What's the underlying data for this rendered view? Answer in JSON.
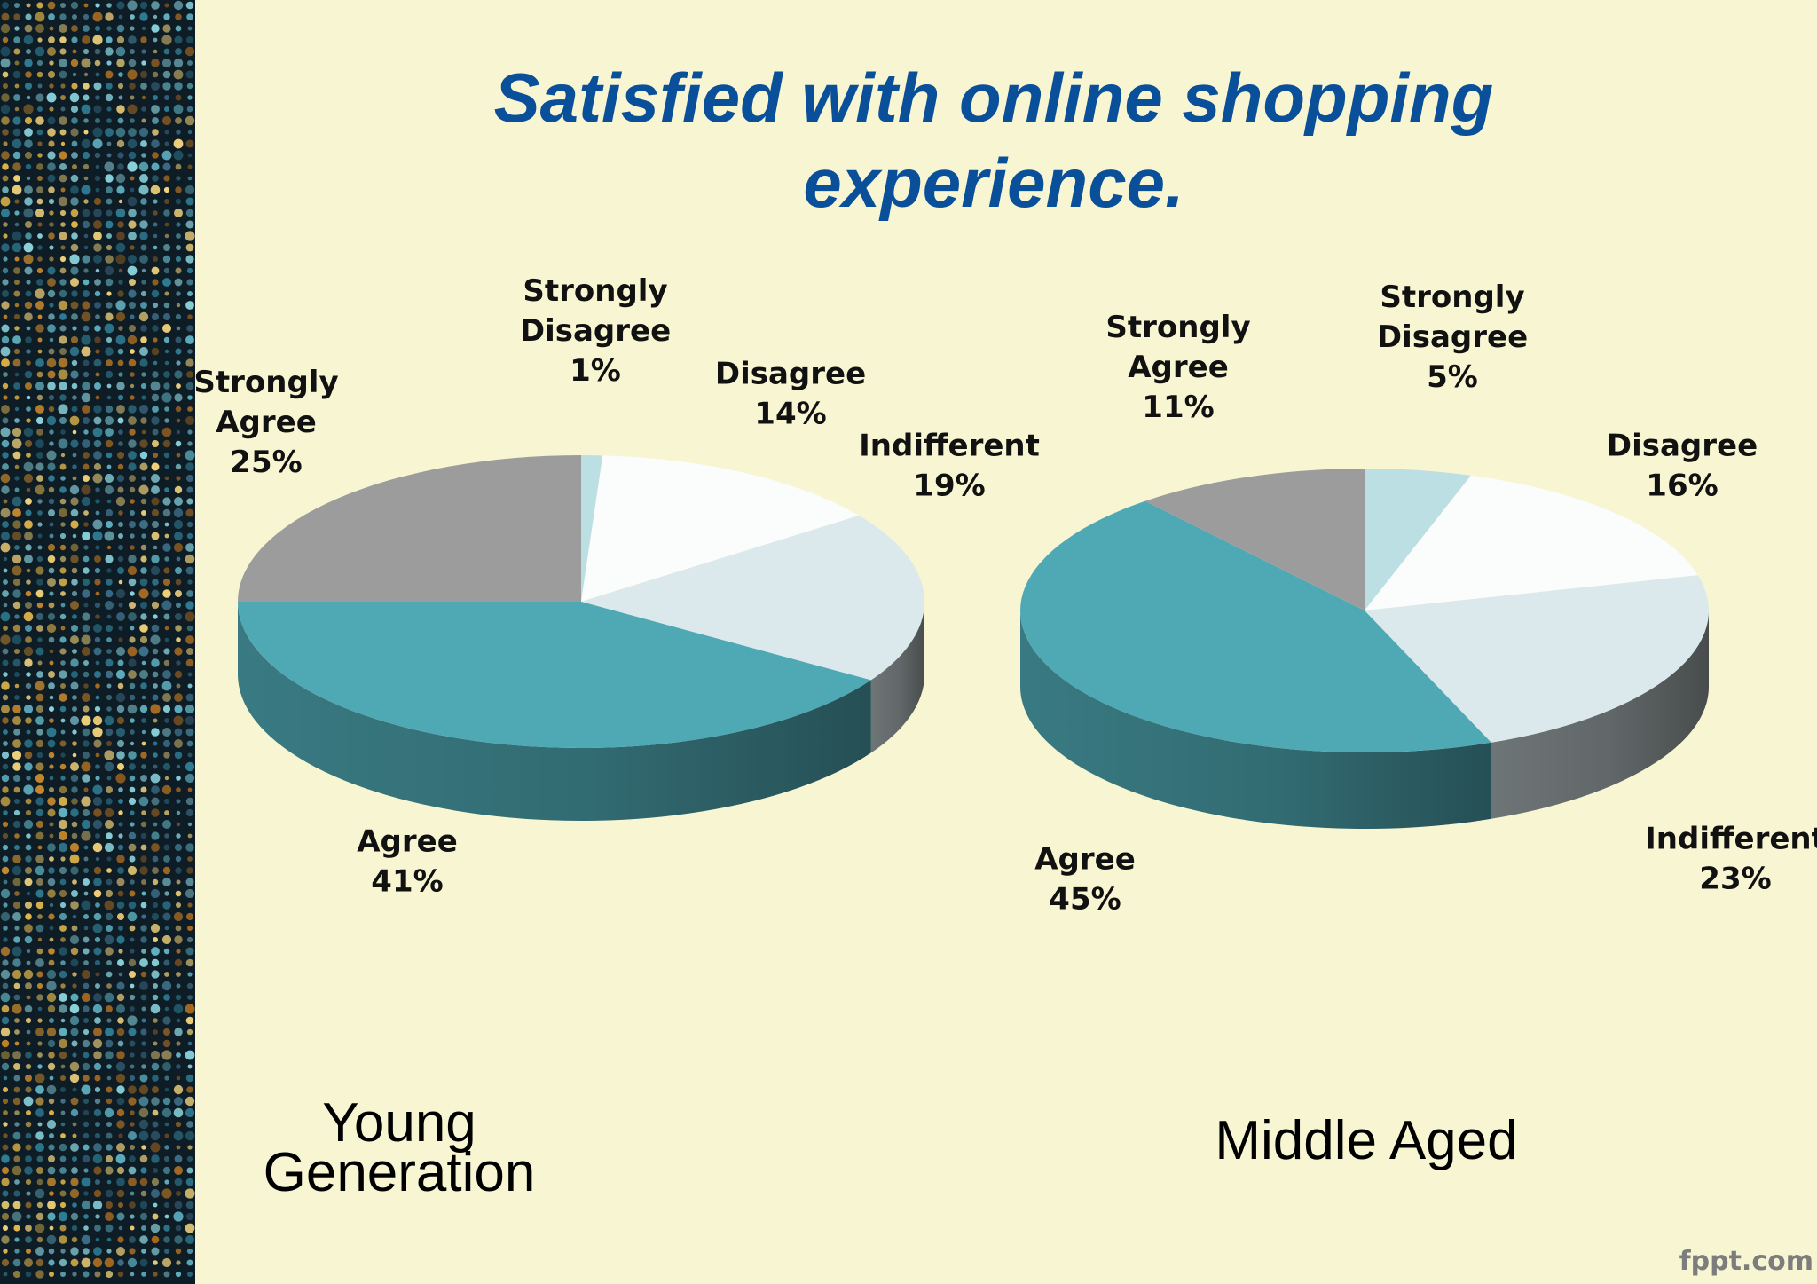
{
  "title": "Satisfied with online shopping experience.",
  "watermark": "fppt.com",
  "colors": {
    "background": "#f8f6d2",
    "title": "#0a4f9a",
    "agree": "#4fa9b4",
    "strongly_agree": "#9d9c9d",
    "strongly_disagree": "#bcdfe3",
    "disagree": "#fbfcfc",
    "indifferent": "#dbe9ec"
  },
  "chart_data": [
    {
      "type": "pie",
      "title": "",
      "caption": "Young Generation",
      "slices": [
        {
          "label": "Strongly Disagree",
          "value": 1,
          "color": "#bcdfe3",
          "text": [
            "Strongly",
            "Disagree",
            "1%"
          ]
        },
        {
          "label": "Disagree",
          "value": 14,
          "color": "#fbfcfc",
          "text": [
            "Disagree",
            "14%"
          ]
        },
        {
          "label": "Indifferent",
          "value": 19,
          "color": "#dbe9ec",
          "text": [
            "Indifferent",
            "19%"
          ]
        },
        {
          "label": "Agree",
          "value": 41,
          "color": "#4fa9b4",
          "text": [
            "Agree",
            "41%"
          ]
        },
        {
          "label": "Strongly Agree",
          "value": 25,
          "color": "#9d9c9d",
          "text": [
            "Strongly",
            "Agree",
            "25%"
          ]
        }
      ]
    },
    {
      "type": "pie",
      "title": "",
      "caption": "Middle Aged",
      "slices": [
        {
          "label": "Strongly Disagree",
          "value": 5,
          "color": "#bcdfe3",
          "text": [
            "Strongly",
            "Disagree",
            "5%"
          ]
        },
        {
          "label": "Disagree",
          "value": 16,
          "color": "#fbfcfc",
          "text": [
            "Disagree",
            "16%"
          ]
        },
        {
          "label": "Indifferent",
          "value": 23,
          "color": "#dbe9ec",
          "text": [
            "Indifferent",
            "23%"
          ]
        },
        {
          "label": "Agree",
          "value": 45,
          "color": "#4fa9b4",
          "text": [
            "Agree",
            "45%"
          ]
        },
        {
          "label": "Strongly Agree",
          "value": 11,
          "color": "#9d9c9d",
          "text": [
            "Strongly",
            "Agree",
            "11%"
          ]
        }
      ]
    }
  ]
}
